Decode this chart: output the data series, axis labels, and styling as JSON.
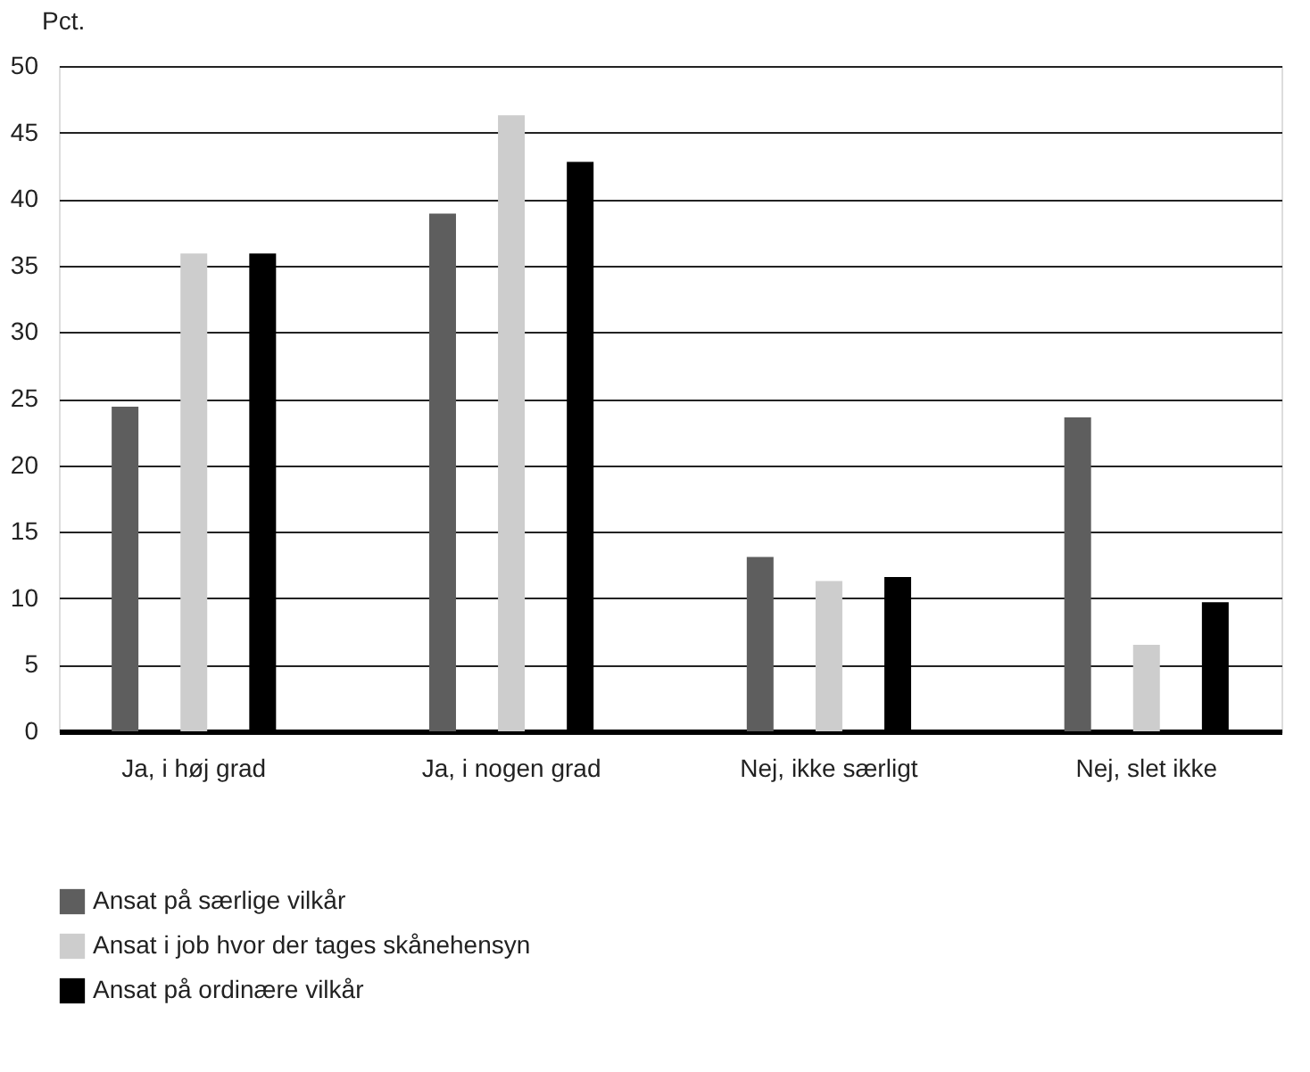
{
  "chart_data": {
    "type": "bar",
    "ylabel": "Pct.",
    "categories": [
      "Ja, i høj grad",
      "Ja, i nogen grad",
      "Nej, ikke særligt",
      "Nej, slet ikke"
    ],
    "series": [
      {
        "name": "Ansat på særlige vilkår",
        "color": "#5e5e5e",
        "values": [
          24.4,
          38.9,
          13.1,
          23.6
        ]
      },
      {
        "name": "Ansat i job hvor der tages skånehensyn",
        "color": "#cdcdcd",
        "values": [
          35.9,
          46.3,
          11.3,
          6.5
        ]
      },
      {
        "name": "Ansat på ordinære vilkår",
        "color": "#000000",
        "values": [
          35.9,
          42.8,
          11.6,
          9.7
        ]
      }
    ],
    "ylim": [
      0,
      50
    ],
    "yticks": [
      0,
      5,
      10,
      15,
      20,
      25,
      30,
      35,
      40,
      45,
      50
    ],
    "grid": "y",
    "legend": "bottom"
  }
}
